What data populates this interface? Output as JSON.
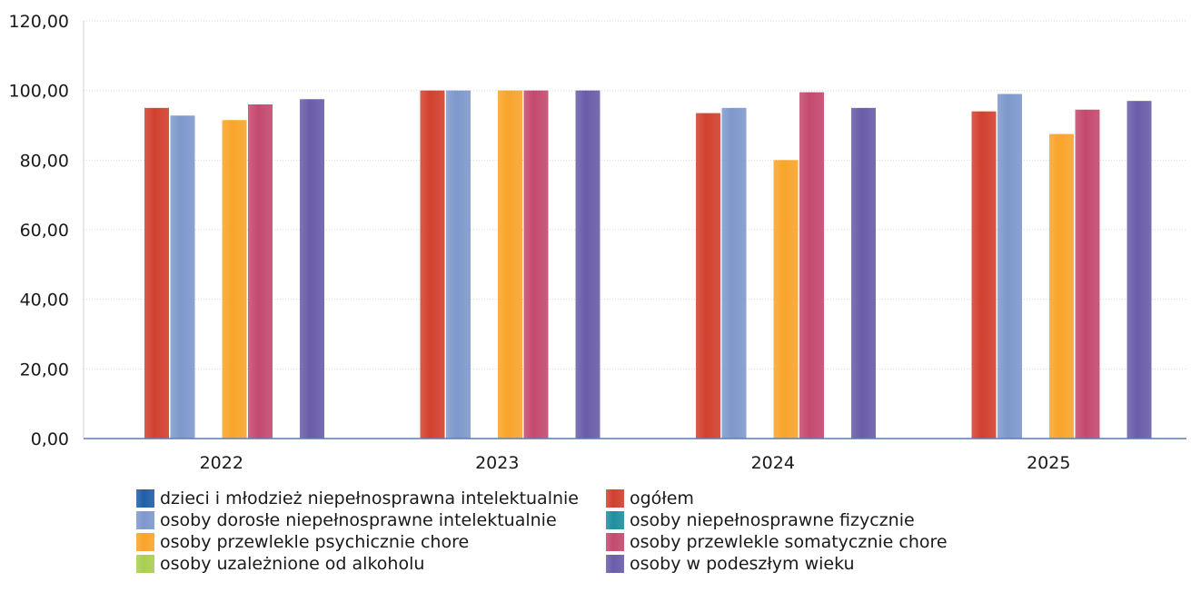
{
  "chart_data": {
    "type": "bar",
    "categories": [
      "2022",
      "2023",
      "2024",
      "2025"
    ],
    "y_tick_labels": [
      "0,00",
      "20,00",
      "40,00",
      "60,00",
      "80,00",
      "100,00",
      "120,00"
    ],
    "ylim": [
      0,
      120
    ],
    "grid": true,
    "legend_position": "bottom",
    "series": [
      {
        "name": "dzieci i młodzież niepełnosprawna intelektualnie",
        "color": "#1f5fa8",
        "values": [
          null,
          null,
          null,
          null
        ]
      },
      {
        "name": "ogółem",
        "color": "#d2402e",
        "values": [
          95.0,
          100.0,
          93.5,
          94.0
        ]
      },
      {
        "name": "osoby dorosłe niepełnosprawne intelektualnie",
        "color": "#7f98cc",
        "values": [
          92.8,
          100.0,
          95.0,
          99.0
        ]
      },
      {
        "name": "osoby niepełnosprawne fizycznie",
        "color": "#1f8fa0",
        "values": [
          null,
          null,
          null,
          null
        ]
      },
      {
        "name": "osoby przewlekle psychicznie chore",
        "color": "#f9a42a",
        "values": [
          91.5,
          100.0,
          80.0,
          87.5
        ]
      },
      {
        "name": "osoby przewlekle somatycznie chore",
        "color": "#c4496f",
        "values": [
          96.0,
          100.0,
          99.5,
          94.5
        ]
      },
      {
        "name": "osoby uzależnione od alkoholu",
        "color": "#a9cf4f",
        "values": [
          null,
          null,
          null,
          null
        ]
      },
      {
        "name": "osoby w podeszłym wieku",
        "color": "#6a5ca9",
        "values": [
          97.5,
          100.0,
          95.0,
          97.0
        ]
      }
    ]
  }
}
